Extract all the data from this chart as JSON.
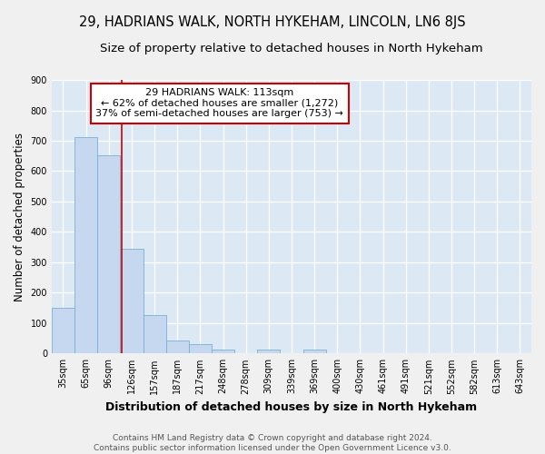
{
  "title": "29, HADRIANS WALK, NORTH HYKEHAM, LINCOLN, LN6 8JS",
  "subtitle": "Size of property relative to detached houses in North Hykeham",
  "xlabel": "Distribution of detached houses by size in North Hykeham",
  "ylabel": "Number of detached properties",
  "categories": [
    "35sqm",
    "65sqm",
    "96sqm",
    "126sqm",
    "157sqm",
    "187sqm",
    "217sqm",
    "248sqm",
    "278sqm",
    "309sqm",
    "339sqm",
    "369sqm",
    "400sqm",
    "430sqm",
    "461sqm",
    "491sqm",
    "521sqm",
    "552sqm",
    "582sqm",
    "613sqm",
    "643sqm"
  ],
  "values": [
    150,
    712,
    652,
    343,
    127,
    42,
    30,
    12,
    0,
    12,
    0,
    12,
    0,
    0,
    0,
    0,
    0,
    0,
    0,
    0,
    0
  ],
  "bar_color": "#c5d8f0",
  "bar_edge_color": "#7bafd4",
  "vline_color": "#cc0000",
  "annotation_text": "29 HADRIANS WALK: 113sqm\n← 62% of detached houses are smaller (1,272)\n37% of semi-detached houses are larger (753) →",
  "annotation_box_color": "#ffffff",
  "annotation_box_edge": "#cc0000",
  "ylim": [
    0,
    900
  ],
  "yticks": [
    0,
    100,
    200,
    300,
    400,
    500,
    600,
    700,
    800,
    900
  ],
  "plot_bg_color": "#dce9f5",
  "fig_bg_color": "#f0f0f0",
  "grid_color": "#ffffff",
  "footer": "Contains HM Land Registry data © Crown copyright and database right 2024.\nContains public sector information licensed under the Open Government Licence v3.0.",
  "title_fontsize": 10.5,
  "subtitle_fontsize": 9.5,
  "xlabel_fontsize": 9,
  "ylabel_fontsize": 8.5,
  "tick_fontsize": 7,
  "annotation_fontsize": 8,
  "footer_fontsize": 6.5
}
